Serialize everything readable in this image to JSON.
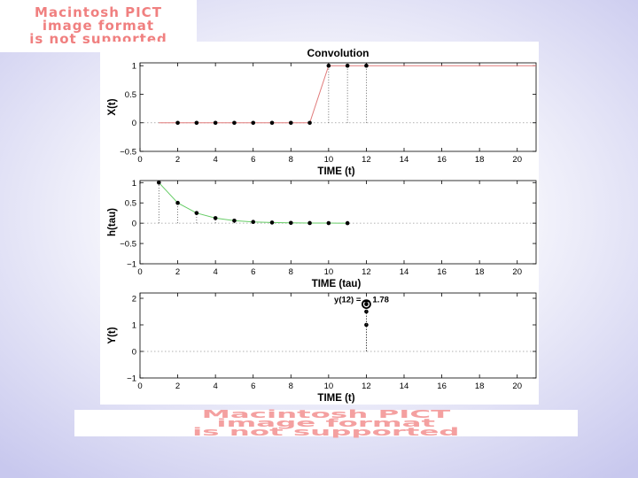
{
  "placeholders": {
    "top": [
      "Macintosh PICT",
      "image format",
      "is not supported"
    ],
    "bottom": [
      "Macintosh PICT",
      "image format",
      "is not supported"
    ]
  },
  "colors": {
    "x_line": "#e07a7a",
    "h_line": "#66cc66",
    "markers": "#000000",
    "grid": "#999999",
    "highlight_ring": "#000000"
  },
  "chart_data": [
    {
      "type": "line",
      "title": "Convolution",
      "xlabel": "TIME (t)",
      "ylabel": "X(t)",
      "xlim": [
        0,
        21
      ],
      "ylim": [
        -0.5,
        1.05
      ],
      "xticks": [
        "0",
        "2",
        "4",
        "6",
        "8",
        "10",
        "12",
        "14",
        "16",
        "18",
        "20"
      ],
      "yticks": [
        "−0.5",
        "0",
        "0.5",
        "1"
      ],
      "ytick_values": [
        -0.5,
        0,
        0.5,
        1
      ],
      "line": {
        "x": [
          1,
          9,
          10,
          21
        ],
        "y": [
          0,
          0,
          1,
          1
        ]
      },
      "stems": {
        "x": [
          2,
          3,
          4,
          5,
          6,
          7,
          8,
          9,
          10,
          11,
          12
        ],
        "y": [
          0,
          0,
          0,
          0,
          0,
          0,
          0,
          0,
          1,
          1,
          1
        ]
      },
      "baseline": 0
    },
    {
      "type": "line",
      "title": "",
      "xlabel": "TIME (tau)",
      "ylabel": "h(tau)",
      "xlim": [
        0,
        21
      ],
      "ylim": [
        -1,
        1.05
      ],
      "xticks": [
        "0",
        "2",
        "4",
        "6",
        "8",
        "10",
        "12",
        "14",
        "16",
        "18",
        "20"
      ],
      "yticks": [
        "−1",
        "−0.5",
        "0",
        "0.5",
        "1"
      ],
      "ytick_values": [
        -1,
        -0.5,
        0,
        0.5,
        1
      ],
      "line": {
        "x": [
          1,
          2,
          3,
          4,
          5,
          6,
          7,
          8,
          9,
          10,
          11
        ],
        "y": [
          1,
          0.5,
          0.25,
          0.125,
          0.0625,
          0.031,
          0.016,
          0.008,
          0.004,
          0.002,
          0.001
        ]
      },
      "stems": {
        "x": [
          1,
          2,
          3,
          4,
          5,
          6,
          7,
          8,
          9,
          10,
          11
        ],
        "y": [
          1,
          0.5,
          0.25,
          0.125,
          0.0625,
          0.031,
          0.016,
          0.008,
          0.004,
          0.002,
          0.001
        ]
      },
      "baseline": 0
    },
    {
      "type": "scatter",
      "title": "",
      "xlabel": "TIME (t)",
      "ylabel": "Y(t)",
      "xlim": [
        0,
        21
      ],
      "ylim": [
        -1,
        2.2
      ],
      "xticks": [
        "0",
        "2",
        "4",
        "6",
        "8",
        "10",
        "12",
        "14",
        "16",
        "18",
        "20"
      ],
      "yticks": [
        "−1",
        "0",
        "1",
        "2"
      ],
      "ytick_values": [
        -1,
        0,
        1,
        2
      ],
      "stems": {
        "x": [
          12,
          12,
          12
        ],
        "y": [
          1,
          1.5,
          1.78
        ]
      },
      "highlight": {
        "x": 12,
        "y": 1.78
      },
      "annotation": {
        "label": "y(12) =",
        "value": "1.78",
        "x": 12,
        "y": 1.78
      },
      "baseline": 0
    }
  ]
}
